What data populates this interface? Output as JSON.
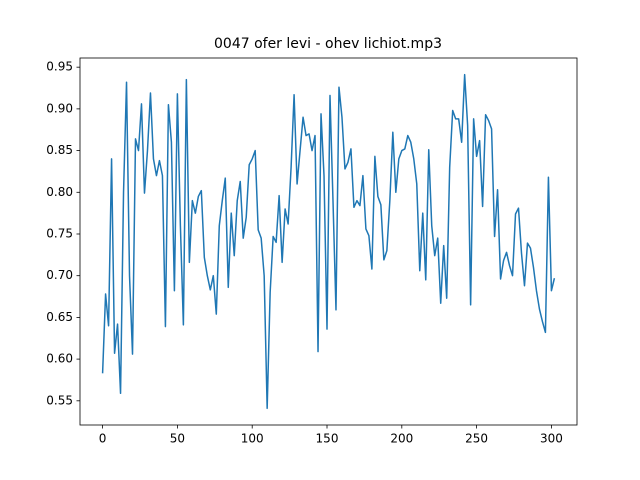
{
  "chart_data": {
    "type": "line",
    "title": "0047 ofer levi - ohev lichiot.mp3",
    "x": [
      0,
      2,
      4,
      6,
      8,
      10,
      12,
      14,
      16,
      18,
      20,
      22,
      24,
      26,
      28,
      30,
      32,
      34,
      36,
      38,
      40,
      42,
      44,
      46,
      48,
      50,
      52,
      54,
      56,
      58,
      60,
      62,
      64,
      66,
      68,
      70,
      72,
      74,
      76,
      78,
      80,
      82,
      84,
      86,
      88,
      90,
      92,
      94,
      96,
      98,
      100,
      102,
      104,
      106,
      108,
      110,
      112,
      114,
      116,
      118,
      120,
      122,
      124,
      126,
      128,
      130,
      132,
      134,
      136,
      138,
      140,
      142,
      144,
      146,
      148,
      150,
      152,
      154,
      156,
      158,
      160,
      162,
      164,
      166,
      168,
      170,
      172,
      174,
      176,
      178,
      180,
      182,
      184,
      186,
      188,
      190,
      192,
      194,
      196,
      198,
      200,
      202,
      204,
      206,
      208,
      210,
      212,
      214,
      216,
      218,
      220,
      222,
      224,
      226,
      228,
      230,
      232,
      234,
      236,
      238,
      240,
      242,
      244,
      246,
      248,
      250,
      252,
      254,
      256,
      258,
      260,
      262,
      264,
      266,
      268,
      270,
      272,
      274,
      276,
      278,
      280,
      282,
      284,
      286,
      288,
      290,
      292,
      294,
      296,
      298,
      300,
      302
    ],
    "series": [
      {
        "color": "#1f77b4",
        "values": [
          0.583,
          0.678,
          0.64,
          0.84,
          0.607,
          0.642,
          0.559,
          0.8,
          0.932,
          0.7,
          0.606,
          0.864,
          0.85,
          0.906,
          0.799,
          0.85,
          0.919,
          0.84,
          0.82,
          0.838,
          0.82,
          0.639,
          0.905,
          0.86,
          0.682,
          0.918,
          0.76,
          0.641,
          0.935,
          0.716,
          0.79,
          0.775,
          0.795,
          0.802,
          0.722,
          0.7,
          0.683,
          0.7,
          0.654,
          0.76,
          0.79,
          0.817,
          0.686,
          0.775,
          0.724,
          0.79,
          0.813,
          0.745,
          0.77,
          0.833,
          0.84,
          0.85,
          0.755,
          0.745,
          0.7,
          0.541,
          0.68,
          0.747,
          0.74,
          0.796,
          0.716,
          0.78,
          0.762,
          0.83,
          0.917,
          0.81,
          0.85,
          0.89,
          0.868,
          0.87,
          0.85,
          0.868,
          0.609,
          0.894,
          0.82,
          0.636,
          0.916,
          0.79,
          0.659,
          0.926,
          0.89,
          0.828,
          0.836,
          0.852,
          0.782,
          0.79,
          0.784,
          0.82,
          0.756,
          0.748,
          0.708,
          0.843,
          0.795,
          0.785,
          0.719,
          0.73,
          0.79,
          0.872,
          0.8,
          0.84,
          0.85,
          0.852,
          0.868,
          0.86,
          0.84,
          0.81,
          0.706,
          0.775,
          0.695,
          0.851,
          0.76,
          0.724,
          0.745,
          0.667,
          0.736,
          0.673,
          0.83,
          0.898,
          0.888,
          0.888,
          0.86,
          0.941,
          0.88,
          0.665,
          0.888,
          0.843,
          0.862,
          0.783,
          0.893,
          0.886,
          0.876,
          0.747,
          0.803,
          0.696,
          0.718,
          0.728,
          0.712,
          0.7,
          0.774,
          0.781,
          0.727,
          0.688,
          0.739,
          0.733,
          0.71,
          0.682,
          0.66,
          0.645,
          0.632,
          0.818,
          0.682,
          0.697
        ]
      }
    ],
    "xlim": [
      -15.1,
      317.1
    ],
    "ylim": [
      0.521,
      0.961
    ],
    "xticks": [
      0,
      50,
      100,
      150,
      200,
      250,
      300
    ],
    "yticks": [
      0.55,
      {
        "value": 0.6,
        "label": "0.60"
      },
      0.65,
      {
        "value": 0.7,
        "label": "0.70"
      },
      0.75,
      {
        "value": 0.8,
        "label": "0.80"
      },
      0.85,
      {
        "value": 0.9,
        "label": "0.90"
      },
      0.95
    ]
  }
}
